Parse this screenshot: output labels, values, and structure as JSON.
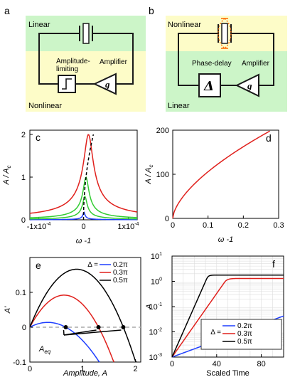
{
  "panel_a": {
    "letter": "a",
    "top_label": "Linear",
    "bottom_label": "Nonlinear",
    "box1_label": "Amplitude-limiting",
    "box1_line1": "Amplitude-",
    "box1_line2": "limiting",
    "box2_label": "Amplifier",
    "amp_symbol": "g"
  },
  "panel_b": {
    "letter": "b",
    "top_label": "Nonlinear",
    "bottom_label": "Linear",
    "box1_label": "Phase-delay",
    "box2_label": "Amplifier",
    "delay_symbol": "Δ",
    "amp_symbol": "g"
  },
  "colors": {
    "green_bg": "#ccf5c8",
    "yellow_bg": "#fdfcc8",
    "blue": "#1f3fff",
    "red": "#e0201c",
    "green": "#33cc33",
    "black": "#000000",
    "gray_dash": "#aaaaaa",
    "orange_dash": "#ff6a00"
  },
  "chart_data": [
    {
      "panel": "c",
      "type": "line",
      "xlabel": "ω -1",
      "ylabel_main": "A / A",
      "ylabel_sub": "c",
      "xlim": [
        -0.00012,
        0.00012
      ],
      "ylim": [
        0,
        2.1
      ],
      "xticks": [
        {
          "v": -0.0001,
          "label": "-1x10",
          "sup": "-4"
        },
        {
          "v": 0,
          "label": "0",
          "sup": ""
        },
        {
          "v": 0.0001,
          "label": "1x10",
          "sup": "-4"
        }
      ],
      "yticks": [
        {
          "v": 0,
          "label": "0"
        },
        {
          "v": 1,
          "label": "1"
        },
        {
          "v": 2,
          "label": "2"
        }
      ],
      "series": [
        {
          "color": "#1f3fff",
          "peak": 0.18,
          "width": 4e-06
        },
        {
          "color": "#33cc33",
          "peak": 0.55,
          "width": 9e-06
        },
        {
          "color": "#33cc33",
          "peak": 1.0,
          "width": 1.2e-05
        },
        {
          "color": "#e0201c",
          "peak": 2.0,
          "width": 2e-05
        }
      ],
      "backbone_dashed": true
    },
    {
      "panel": "d",
      "type": "line",
      "xlabel": "ω -1",
      "ylabel_main": "A / A",
      "ylabel_sub": "c",
      "xlim": [
        0,
        0.3
      ],
      "ylim": [
        0,
        200
      ],
      "xticks": [
        {
          "v": 0,
          "label": "0"
        },
        {
          "v": 0.1,
          "label": "0.1"
        },
        {
          "v": 0.2,
          "label": "0.2"
        },
        {
          "v": 0.3,
          "label": "0.3"
        }
      ],
      "yticks": [
        {
          "v": 0,
          "label": "0"
        },
        {
          "v": 100,
          "label": "100"
        },
        {
          "v": 200,
          "label": "200"
        }
      ],
      "series": [
        {
          "color": "#e0201c",
          "x_end": 0.275,
          "y_end": 198
        }
      ]
    },
    {
      "panel": "e",
      "type": "line",
      "xlabel": "Amplitude, A",
      "ylabel": "A'",
      "xlim": [
        0,
        2.1
      ],
      "ylim": [
        -0.1,
        0.2
      ],
      "xticks": [
        {
          "v": 0,
          "label": "0"
        },
        {
          "v": 1,
          "label": "1"
        },
        {
          "v": 2,
          "label": "2"
        }
      ],
      "yticks": [
        {
          "v": -0.1,
          "label": "-0.1"
        },
        {
          "v": 0,
          "label": "0"
        },
        {
          "v": 0.1,
          "label": "0.1"
        }
      ],
      "legend_prefix": "Δ =",
      "series": [
        {
          "label": "0.2π",
          "color": "#1f3fff",
          "root": 0.68,
          "peak": 0.014
        },
        {
          "label": "0.3π",
          "color": "#e0201c",
          "root": 1.3,
          "peak": 0.093
        },
        {
          "label": "0.5π",
          "color": "#000000",
          "root": 1.77,
          "peak": 0.168
        }
      ],
      "annotation_main": "A",
      "annotation_sub": "eq",
      "equilibria": [
        0.68,
        1.3,
        1.77
      ]
    },
    {
      "panel": "f",
      "type": "line",
      "xlabel": "Scaled Time",
      "ylabel": "A",
      "xlim": [
        0,
        100
      ],
      "ylog": true,
      "ylim_exp": [
        -3,
        1
      ],
      "xticks": [
        {
          "v": 0,
          "label": "0"
        },
        {
          "v": 40,
          "label": "40"
        },
        {
          "v": 80,
          "label": "80"
        }
      ],
      "yticks": [
        {
          "exp": -3,
          "label": "10",
          "sup": "-3"
        },
        {
          "exp": -2,
          "label": "10",
          "sup": "-2"
        },
        {
          "exp": -1,
          "label": "10",
          "sup": "-1"
        },
        {
          "exp": 0,
          "label": "10",
          "sup": "0"
        },
        {
          "exp": 1,
          "label": "10",
          "sup": "1"
        }
      ],
      "legend_prefix": "Δ =",
      "series": [
        {
          "label": "0.2π",
          "color": "#1f3fff",
          "t_sat": 100,
          "a_final": 0.65,
          "rate": 0.075
        },
        {
          "label": "0.3π",
          "color": "#e0201c",
          "t_sat": 28,
          "a_final": 1.3,
          "rate": 0.29
        },
        {
          "label": "0.5π",
          "color": "#000000",
          "t_sat": 17,
          "a_final": 1.77,
          "rate": 0.46
        }
      ]
    }
  ]
}
